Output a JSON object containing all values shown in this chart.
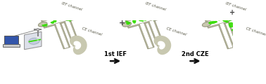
{
  "background_color": "#ffffff",
  "arrow1_text": "1st IEF",
  "arrow2_text": "2nd CZE",
  "label_ief_channel": "IEF channel",
  "label_ce_channel": "CE channel",
  "figsize": [
    3.78,
    1.2
  ],
  "dpi": 100,
  "green_color": "#33dd00",
  "tube_outer": "#c8c8b0",
  "tube_edge": "#999980",
  "tube_inner": "#ffffff",
  "text_color": "#555544",
  "plus_color": "#444444",
  "arrow_color": "#111111"
}
